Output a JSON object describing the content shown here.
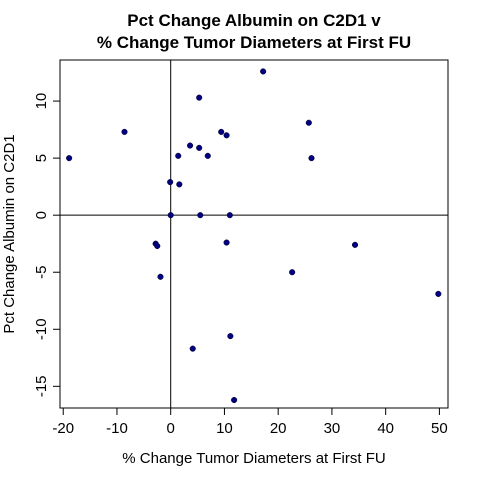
{
  "chart_data": {
    "type": "scatter",
    "title": "Pct Change Albumin on C2D1 v",
    "subtitle": "% Change Tumor Diameters at First FU",
    "xlabel": "% Change Tumor Diameters at First FU",
    "ylabel": "Pct Change Albumin on C2D1",
    "xlim": [
      -20.6,
      51.6
    ],
    "ylim": [
      -16.9,
      13.6
    ],
    "xticks": [
      -20,
      -10,
      0,
      10,
      20,
      30,
      40,
      50
    ],
    "yticks": [
      -15,
      -10,
      -5,
      0,
      5,
      10
    ],
    "reference_lines": {
      "x": 0,
      "y": 0
    },
    "grid": false,
    "point_color": "#000080",
    "points": [
      {
        "x": 17.2,
        "y": 12.6
      },
      {
        "x": 5.3,
        "y": 10.3
      },
      {
        "x": 25.7,
        "y": 8.1
      },
      {
        "x": -8.6,
        "y": 7.3
      },
      {
        "x": 9.4,
        "y": 7.3
      },
      {
        "x": 10.4,
        "y": 7.0
      },
      {
        "x": 3.6,
        "y": 6.1
      },
      {
        "x": 5.3,
        "y": 5.9
      },
      {
        "x": 1.4,
        "y": 5.2
      },
      {
        "x": 6.9,
        "y": 5.2
      },
      {
        "x": -18.9,
        "y": 5.0
      },
      {
        "x": 26.2,
        "y": 5.0
      },
      {
        "x": -0.1,
        "y": 2.9
      },
      {
        "x": 1.6,
        "y": 2.7
      },
      {
        "x": 0.0,
        "y": 0.0
      },
      {
        "x": 5.5,
        "y": 0.0
      },
      {
        "x": 11.0,
        "y": 0.0
      },
      {
        "x": 10.4,
        "y": -2.4
      },
      {
        "x": -2.8,
        "y": -2.5
      },
      {
        "x": -2.5,
        "y": -2.7
      },
      {
        "x": 34.3,
        "y": -2.6
      },
      {
        "x": 22.6,
        "y": -5.0
      },
      {
        "x": -1.9,
        "y": -5.4
      },
      {
        "x": 49.8,
        "y": -6.9
      },
      {
        "x": 11.1,
        "y": -10.6
      },
      {
        "x": 4.1,
        "y": -11.7
      },
      {
        "x": 11.8,
        "y": -16.2
      }
    ]
  }
}
